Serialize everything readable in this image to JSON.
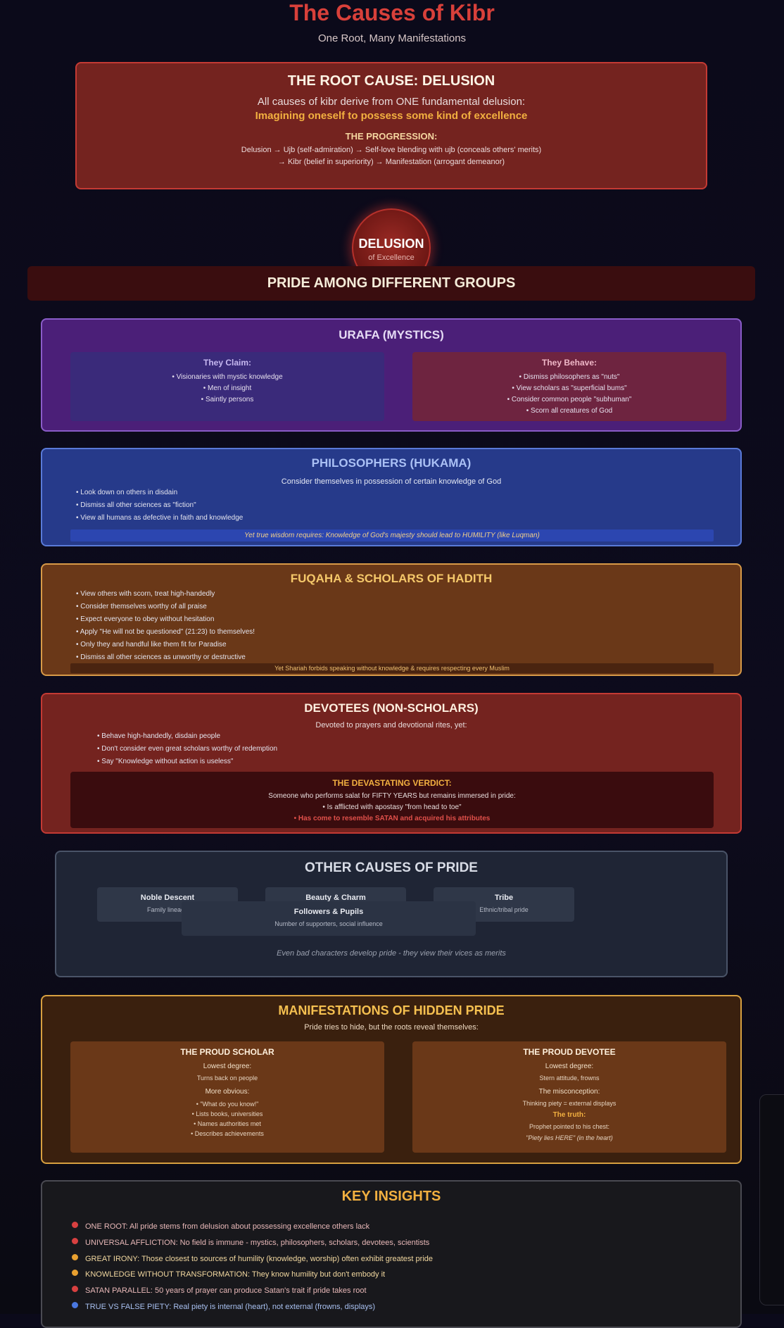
{
  "header": {
    "title": "The Causes of Kibr",
    "subtitle": "One Root, Many Manifestations"
  },
  "root": {
    "title": "THE ROOT CAUSE: DELUSION",
    "line1": "All causes of kibr derive from ONE fundamental delusion:",
    "line2": "Imagining oneself to possess some kind of excellence",
    "progression_heading": "THE PROGRESSION:",
    "step1": "Delusion → Ujb (self-admiration) → Self-love blending with ujb (conceals others' merits)",
    "step2": "→ Kibr (belief in superiority) → Manifestation (arrogant demeanor)"
  },
  "delusion_node": {
    "label": "DELUSION",
    "sublabel": "of Excellence"
  },
  "groups_heading": "PRIDE AMONG DIFFERENT GROUPS",
  "urafa": {
    "title": "URAFA (MYSTICS)",
    "claim_heading": "They Claim:",
    "claims": [
      "• Visionaries with mystic knowledge",
      "• Men of insight",
      "• Saintly persons"
    ],
    "behave_heading": "They Behave:",
    "behaviors": [
      "• Dismiss philosophers as \"nuts\"",
      "• View scholars as \"superficial bums\"",
      "• Consider common people \"subhuman\"",
      "• Scorn all creatures of God"
    ]
  },
  "philosophers": {
    "title": "PHILOSOPHERS (HUKAMA)",
    "line": "Consider themselves in possession of certain knowledge of God",
    "items": [
      "• Look down on others in disdain",
      "• Dismiss all other sciences as \"fiction\"",
      "• View all humans as defective in faith and knowledge"
    ],
    "note": "Yet true wisdom requires: Knowledge of God's majesty should lead to HUMILITY (like Luqman)"
  },
  "fuqaha": {
    "title": "FUQAHA & SCHOLARS OF HADITH",
    "items": [
      "• View others with scorn, treat high-handedly",
      "• Consider themselves worthy of all praise",
      "• Expect everyone to obey without hesitation",
      "• Apply \"He will not be questioned\" (21:23) to themselves!",
      "• Only they and handful like them fit for Paradise",
      "• Dismiss all other sciences as unworthy or destructive"
    ],
    "note": "Yet Shariah forbids speaking without knowledge & requires respecting every Muslim"
  },
  "devotees": {
    "title": "DEVOTEES (NON-SCHOLARS)",
    "line": "Devoted to prayers and devotional rites, yet:",
    "items": [
      "• Behave high-handedly, disdain people",
      "• Don't consider even great scholars worthy of redemption",
      "• Say \"Knowledge without action is useless\""
    ],
    "verdict_heading": "THE DEVASTATING VERDICT:",
    "verdict_1": "Someone who performs salat for FIFTY YEARS but remains immersed in pride:",
    "verdict_2": "• Is afflicted with apostasy \"from head to toe\"",
    "verdict_3": "• Has come to resemble SATAN and acquired his attributes"
  },
  "other_causes": {
    "title": "OTHER CAUSES OF PRIDE",
    "items": [
      {
        "name": "Noble Descent",
        "desc": "Family lineage"
      },
      {
        "name": "Beauty & Charm",
        "desc": ""
      },
      {
        "name": "Tribe",
        "desc": "Ethnic/tribal pride"
      },
      {
        "name": "Followers & Pupils",
        "desc": "Number of supporters, social influence"
      }
    ],
    "note": "Even bad characters develop pride - they view their vices as merits"
  },
  "hidden_pride": {
    "title": "MANIFESTATIONS OF HIDDEN PRIDE",
    "line": "Pride tries to hide, but the roots reveal themselves:",
    "scholar": {
      "title": "THE PROUD SCHOLAR",
      "lowest_heading": "Lowest degree:",
      "lowest": "Turns back on people",
      "obvious_heading": "More obvious:",
      "obvious": [
        "• \"What do you know!\"",
        "• Lists books, universities",
        "• Names authorities met",
        "• Describes achievements"
      ]
    },
    "devotee": {
      "title": "THE PROUD DEVOTEE",
      "lowest_heading": "Lowest degree:",
      "lowest": "Stern attitude, frowns",
      "misconception_heading": "The misconception:",
      "misconception": "Thinking piety = external displays",
      "truth_heading": "The truth:",
      "truth": "Prophet pointed to his chest:",
      "quote": "\"Piety lies HERE\" (in the heart)"
    }
  },
  "key_insights": {
    "title": "KEY INSIGHTS",
    "items": [
      {
        "text": "ONE ROOT: All pride stems from delusion about possessing excellence others lack",
        "color": "#d84040",
        "text_color": "#e8b8b8"
      },
      {
        "text": "UNIVERSAL AFFLICTION: No field is immune - mystics, philosophers, scholars, devotees, scientists",
        "color": "#d84040",
        "text_color": "#e8b8b8"
      },
      {
        "text": "GREAT IRONY: Those closest to sources of humility (knowledge, worship) often exhibit greatest pride",
        "color": "#e8a030",
        "text_color": "#f2d8a0"
      },
      {
        "text": "KNOWLEDGE WITHOUT TRANSFORMATION: They know humility but don't embody it",
        "color": "#e8a030",
        "text_color": "#f2d8a0"
      },
      {
        "text": "SATAN PARALLEL: 50 years of prayer can produce Satan's trait if pride takes root",
        "color": "#d84040",
        "text_color": "#e8b8b8"
      },
      {
        "text": "TRUE VS FALSE PIETY: Real piety is internal (heart), not external (frowns, displays)",
        "color": "#4a78e0",
        "text_color": "#a8c0f0"
      }
    ]
  }
}
